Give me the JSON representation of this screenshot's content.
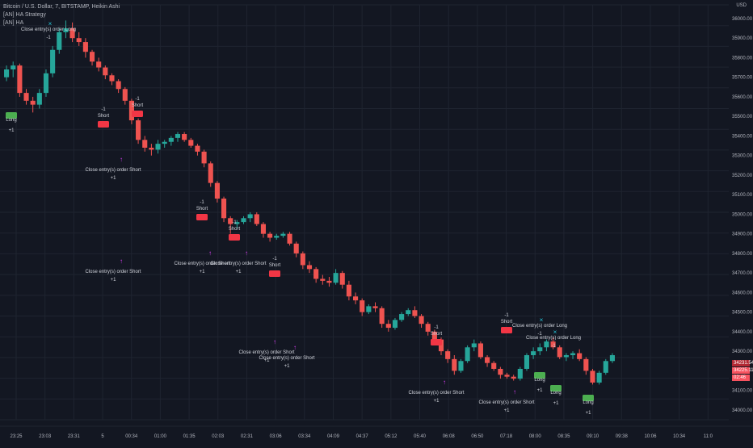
{
  "legend": {
    "title": "Bitcoin / U.S. Dollar, 7, BITSTAMP, Heikin Ashi",
    "line2": "[AN] HA Strategy",
    "line3": "[AN] HA"
  },
  "currency": "USD",
  "price_axis": {
    "labels": [
      "36000.00",
      "35900.00",
      "35800.00",
      "35700.00",
      "35600.00",
      "35500.00",
      "35400.00",
      "35300.00",
      "35200.00",
      "35100.00",
      "35000.00",
      "34900.00",
      "34800.00",
      "34700.00",
      "34600.00",
      "34500.00",
      "34400.00",
      "34300.00",
      "34100.00",
      "34000.00"
    ],
    "current_price": "34231.54",
    "current_price2": "34225.11",
    "countdown": "02:46"
  },
  "time_axis": {
    "labels": [
      "23:25",
      "23:03",
      "23:31",
      "5",
      "00:34",
      "01:00",
      "01:35",
      "02:03",
      "02:31",
      "03:06",
      "03:34",
      "04:09",
      "04:37",
      "05:12",
      "05:40",
      "06:08",
      "06:50",
      "07:18",
      "08:00",
      "08:35",
      "09:10",
      "09:38",
      "10:06",
      "10:34",
      "11:0"
    ]
  },
  "colors": {
    "background": "#131722",
    "grid": "#1f2430",
    "up": "#26a69a",
    "down": "#ef5350",
    "axis_text": "#b2b5be",
    "signal_label": "#d1d4dc",
    "exit_magenta": "#e040fb",
    "exit_cyan": "#26c6da",
    "short_badge": "#f23645",
    "long_badge": "#4caf50"
  },
  "chart_data": {
    "type": "candlestick",
    "style": "Heikin Ashi",
    "symbol": "Bitcoin / U.S. Dollar",
    "timeframe": "7",
    "exchange": "BITSTAMP",
    "ylim": [
      33950,
      36070
    ],
    "candles": [
      [
        35700,
        35760,
        35680,
        35740
      ],
      [
        35740,
        35780,
        35700,
        35760
      ],
      [
        35760,
        35770,
        35600,
        35620
      ],
      [
        35620,
        35640,
        35560,
        35580
      ],
      [
        35580,
        35600,
        35520,
        35560
      ],
      [
        35560,
        35640,
        35540,
        35620
      ],
      [
        35620,
        35740,
        35600,
        35720
      ],
      [
        35720,
        35860,
        35700,
        35840
      ],
      [
        35840,
        35950,
        35820,
        35930
      ],
      [
        35930,
        35990,
        35900,
        35950
      ],
      [
        35950,
        35980,
        35880,
        35900
      ],
      [
        35900,
        35930,
        35860,
        35880
      ],
      [
        35880,
        35900,
        35800,
        35830
      ],
      [
        35830,
        35840,
        35760,
        35780
      ],
      [
        35780,
        35800,
        35730,
        35750
      ],
      [
        35750,
        35760,
        35690,
        35710
      ],
      [
        35710,
        35720,
        35660,
        35680
      ],
      [
        35680,
        35690,
        35620,
        35640
      ],
      [
        35640,
        35650,
        35560,
        35580
      ],
      [
        35580,
        35590,
        35460,
        35480
      ],
      [
        35480,
        35490,
        35360,
        35380
      ],
      [
        35380,
        35400,
        35320,
        35340
      ],
      [
        35340,
        35360,
        35300,
        35330
      ],
      [
        35330,
        35380,
        35310,
        35360
      ],
      [
        35360,
        35380,
        35340,
        35370
      ],
      [
        35370,
        35400,
        35350,
        35390
      ],
      [
        35390,
        35420,
        35370,
        35410
      ],
      [
        35410,
        35420,
        35370,
        35380
      ],
      [
        35380,
        35390,
        35340,
        35350
      ],
      [
        35350,
        35360,
        35300,
        35320
      ],
      [
        35320,
        35330,
        35240,
        35260
      ],
      [
        35260,
        35270,
        35140,
        35160
      ],
      [
        35160,
        35170,
        35060,
        35080
      ],
      [
        35080,
        35090,
        34960,
        34980
      ],
      [
        34980,
        34990,
        34900,
        34950
      ],
      [
        34950,
        34970,
        34930,
        34960
      ],
      [
        34960,
        34990,
        34950,
        34980
      ],
      [
        34980,
        35010,
        34960,
        35000
      ],
      [
        35000,
        35010,
        34940,
        34950
      ],
      [
        34950,
        34960,
        34880,
        34900
      ],
      [
        34900,
        34910,
        34860,
        34880
      ],
      [
        34880,
        34900,
        34870,
        34890
      ],
      [
        34890,
        34910,
        34880,
        34900
      ],
      [
        34900,
        34910,
        34840,
        34850
      ],
      [
        34850,
        34860,
        34780,
        34800
      ],
      [
        34800,
        34810,
        34720,
        34740
      ],
      [
        34740,
        34760,
        34700,
        34720
      ],
      [
        34720,
        34730,
        34650,
        34670
      ],
      [
        34670,
        34690,
        34640,
        34660
      ],
      [
        34660,
        34680,
        34630,
        34650
      ],
      [
        34650,
        34720,
        34640,
        34700
      ],
      [
        34700,
        34710,
        34620,
        34640
      ],
      [
        34640,
        34660,
        34560,
        34580
      ],
      [
        34580,
        34600,
        34540,
        34560
      ],
      [
        34560,
        34570,
        34480,
        34500
      ],
      [
        34500,
        34540,
        34490,
        34530
      ],
      [
        34530,
        34550,
        34500,
        34520
      ],
      [
        34520,
        34530,
        34420,
        34440
      ],
      [
        34440,
        34460,
        34400,
        34420
      ],
      [
        34420,
        34470,
        34410,
        34460
      ],
      [
        34460,
        34500,
        34450,
        34490
      ],
      [
        34490,
        34520,
        34480,
        34510
      ],
      [
        34510,
        34530,
        34470,
        34480
      ],
      [
        34480,
        34490,
        34420,
        34440
      ],
      [
        34440,
        34450,
        34380,
        34400
      ],
      [
        34400,
        34410,
        34340,
        34360
      ],
      [
        34360,
        34370,
        34280,
        34300
      ],
      [
        34300,
        34310,
        34240,
        34260
      ],
      [
        34260,
        34280,
        34180,
        34200
      ],
      [
        34200,
        34260,
        34190,
        34250
      ],
      [
        34250,
        34330,
        34240,
        34320
      ],
      [
        34320,
        34360,
        34300,
        34340
      ],
      [
        34340,
        34350,
        34260,
        34270
      ],
      [
        34270,
        34280,
        34220,
        34240
      ],
      [
        34240,
        34250,
        34200,
        34210
      ],
      [
        34210,
        34220,
        34160,
        34180
      ],
      [
        34180,
        34190,
        34160,
        34170
      ],
      [
        34170,
        34180,
        34150,
        34160
      ],
      [
        34160,
        34220,
        34150,
        34210
      ],
      [
        34210,
        34290,
        34200,
        34280
      ],
      [
        34280,
        34320,
        34260,
        34300
      ],
      [
        34300,
        34340,
        34280,
        34320
      ],
      [
        34320,
        34360,
        34300,
        34350
      ],
      [
        34350,
        34370,
        34310,
        34320
      ],
      [
        34320,
        34330,
        34260,
        34270
      ],
      [
        34270,
        34290,
        34250,
        34280
      ],
      [
        34280,
        34300,
        34260,
        34290
      ],
      [
        34290,
        34310,
        34250,
        34260
      ],
      [
        34260,
        34270,
        34180,
        34200
      ],
      [
        34200,
        34210,
        34130,
        34140
      ],
      [
        34140,
        34200,
        34130,
        34190
      ],
      [
        34190,
        34260,
        34180,
        34250
      ],
      [
        34250,
        34290,
        34240,
        34280
      ]
    ],
    "signals": [
      {
        "label": "Close entry(s) order Long",
        "type": "exit-long"
      },
      {
        "label": "Long",
        "type": "entry-long"
      },
      {
        "label": "Close entry(s) order Short",
        "type": "exit-short"
      },
      {
        "label": "Short",
        "type": "entry-short"
      },
      {
        "label": "Short",
        "type": "entry-short"
      },
      {
        "label": "Close entry(s) order Short",
        "type": "exit-short"
      },
      {
        "label": "Short",
        "type": "entry-short"
      },
      {
        "label": "Short",
        "type": "entry-short"
      },
      {
        "label": "Close entry(s) order Short",
        "type": "exit-short"
      },
      {
        "label": "Close entry(s) order Short",
        "type": "exit-short"
      },
      {
        "label": "Short",
        "type": "entry-short"
      },
      {
        "label": "Close entry(s) order Short",
        "type": "exit-short"
      },
      {
        "label": "Close entry(s) order Short",
        "type": "exit-short"
      },
      {
        "label": "Short",
        "type": "entry-short"
      },
      {
        "label": "Short",
        "type": "entry-short"
      },
      {
        "label": "Close entry(s) order Short",
        "type": "exit-short"
      },
      {
        "label": "Close entry(s) order Short",
        "type": "exit-short"
      },
      {
        "label": "Close entry(s) order Long",
        "type": "exit-long"
      },
      {
        "label": "Close entry(s) order Long",
        "type": "exit-long"
      },
      {
        "label": "Long",
        "type": "entry-long"
      },
      {
        "label": "Long",
        "type": "entry-long"
      },
      {
        "label": "Long",
        "type": "entry-long"
      }
    ]
  }
}
